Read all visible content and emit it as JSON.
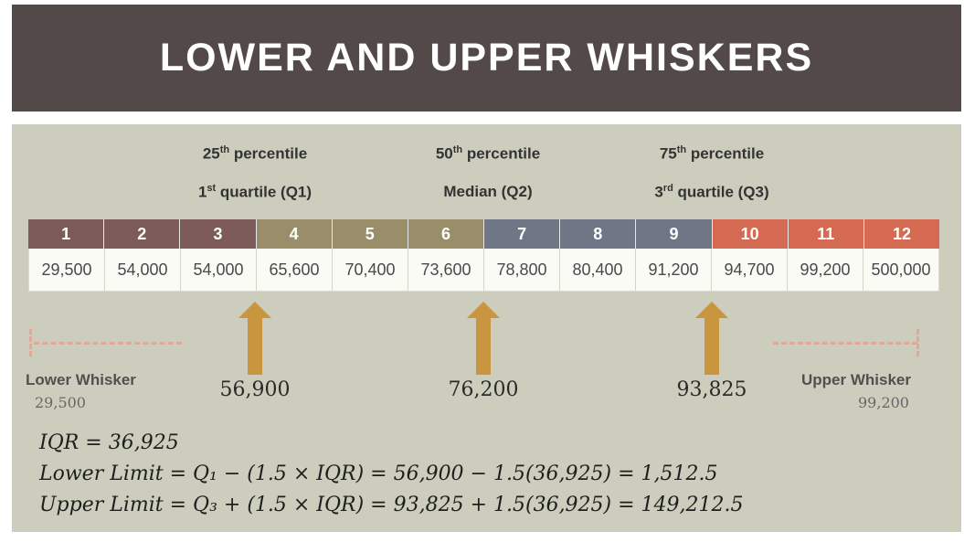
{
  "title": "Lower and Upper Whiskers",
  "percentiles": [
    {
      "sup_num": "25",
      "sup": "th",
      "rest": " percentile",
      "q_num": "1",
      "q_sup": "st",
      "q_rest": " quartile (Q1)"
    },
    {
      "sup_num": "50",
      "sup": "th",
      "rest": " percentile",
      "q_label": "Median (Q2)"
    },
    {
      "sup_num": "75",
      "sup": "th",
      "rest": " percentile",
      "q_num": "3",
      "q_sup": "rd",
      "q_rest": " quartile (Q3)"
    }
  ],
  "indices": [
    "1",
    "2",
    "3",
    "4",
    "5",
    "6",
    "7",
    "8",
    "9",
    "10",
    "11",
    "12"
  ],
  "values": [
    "29,500",
    "54,000",
    "54,000",
    "65,600",
    "70,400",
    "73,600",
    "78,800",
    "80,400",
    "91,200",
    "94,700",
    "99,200",
    "500,000"
  ],
  "group_colors": [
    "#7c5b5a",
    "#9a8e6a",
    "#6f7685",
    "#d36a51"
  ],
  "quartile_values": {
    "q1": "56,900",
    "q2": "76,200",
    "q3": "93,825"
  },
  "arrow_color": "#c9953e",
  "lower_whisker": {
    "label": "Lower Whisker",
    "value": "29,500"
  },
  "upper_whisker": {
    "label": "Upper Whisker",
    "value": "99,200"
  },
  "formulas": {
    "iqr": "IQR = 36,925",
    "lower": "Lower Limit = Q₁ − (1.5 × IQR) = 56,900 − 1.5(36,925) = 1,512.5",
    "upper": "Upper Limit = Q₃ + (1.5 × IQR) = 93,825 + 1.5(36,925) = 149,212.5"
  }
}
